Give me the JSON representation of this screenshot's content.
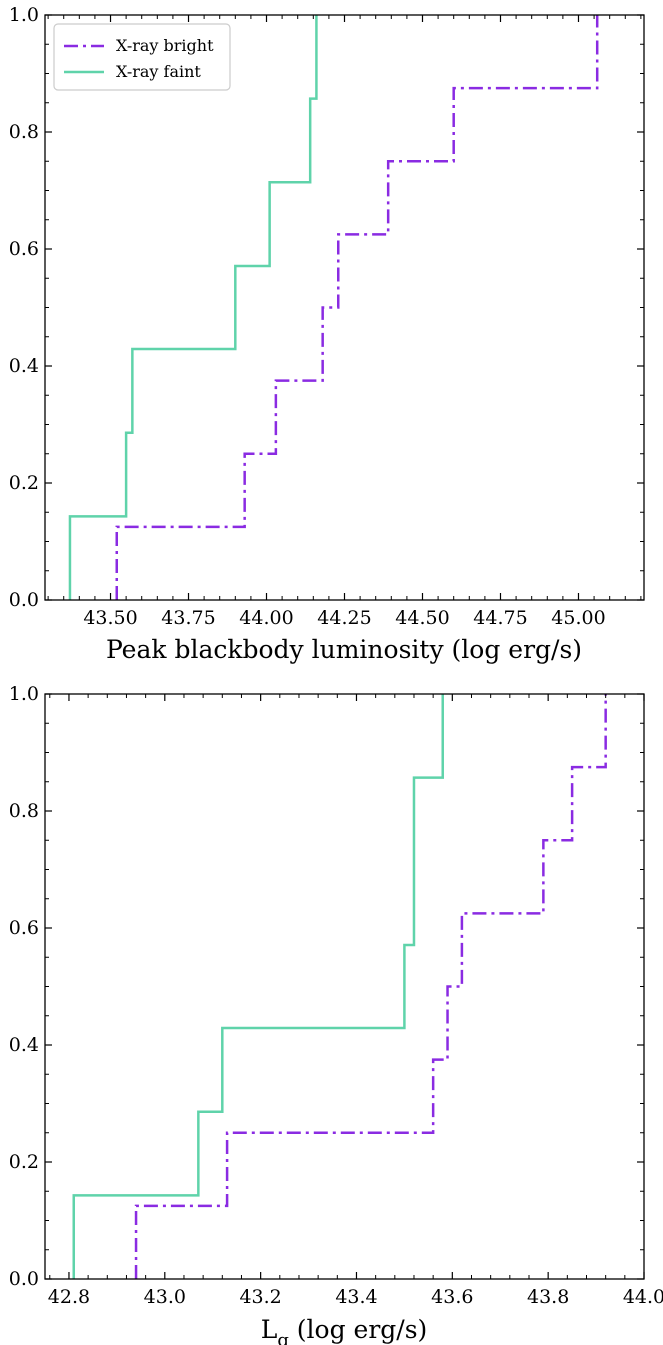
{
  "chart_data": [
    {
      "type": "line",
      "subtype": "step",
      "xlabel": "Peak blackbody luminosity (log erg/s)",
      "ylabel": "",
      "xlim": [
        43.29,
        45.21
      ],
      "ylim": [
        0,
        1.0
      ],
      "x_ticks": [
        43.5,
        43.75,
        44.0,
        44.25,
        44.5,
        44.75,
        45.0
      ],
      "x_tick_labels": [
        "43.50",
        "43.75",
        "44.00",
        "44.25",
        "44.50",
        "44.75",
        "45.00"
      ],
      "y_ticks": [
        0.0,
        0.2,
        0.4,
        0.6,
        0.8,
        1.0
      ],
      "y_tick_labels": [
        "0.0",
        "0.2",
        "0.4",
        "0.6",
        "0.8",
        "1.0"
      ],
      "grid": false,
      "legend": {
        "placement": "top-left",
        "entries": [
          {
            "label": "X-ray bright",
            "color": "#8a2be2",
            "dash": "dashdot"
          },
          {
            "label": "X-ray faint",
            "color": "#5fd3aa",
            "dash": "solid"
          }
        ]
      },
      "series": [
        {
          "name": "X-ray bright",
          "color": "#8a2be2",
          "dash": "dashdot",
          "x": [
            43.52,
            43.93,
            44.03,
            44.18,
            44.23,
            44.39,
            44.6,
            45.06
          ],
          "y": [
            0.125,
            0.25,
            0.375,
            0.5,
            0.625,
            0.75,
            0.875,
            1.0
          ]
        },
        {
          "name": "X-ray faint",
          "color": "#5fd3aa",
          "dash": "solid",
          "x": [
            43.37,
            43.55,
            43.57,
            43.9,
            44.01,
            44.14,
            44.16
          ],
          "y": [
            0.143,
            0.286,
            0.429,
            0.571,
            0.714,
            0.857,
            1.0
          ]
        }
      ]
    },
    {
      "type": "line",
      "subtype": "step",
      "xlabel": "L_g (log erg/s)",
      "xlabel_main": "L",
      "xlabel_sub": "g",
      "xlabel_rest": " (log erg/s)",
      "ylabel": "",
      "xlim": [
        42.75,
        44.0
      ],
      "ylim": [
        0,
        1.0
      ],
      "x_ticks": [
        42.8,
        43.0,
        43.2,
        43.4,
        43.6,
        43.8,
        44.0
      ],
      "x_tick_labels": [
        "42.8",
        "43.0",
        "43.2",
        "43.4",
        "43.6",
        "43.8",
        "44.0"
      ],
      "y_ticks": [
        0.0,
        0.2,
        0.4,
        0.6,
        0.8,
        1.0
      ],
      "y_tick_labels": [
        "0.0",
        "0.2",
        "0.4",
        "0.6",
        "0.8",
        "1.0"
      ],
      "grid": false,
      "series": [
        {
          "name": "X-ray bright",
          "color": "#8a2be2",
          "dash": "dashdot",
          "x": [
            42.94,
            43.13,
            43.56,
            43.59,
            43.62,
            43.79,
            43.85,
            43.92
          ],
          "y": [
            0.125,
            0.25,
            0.375,
            0.5,
            0.625,
            0.75,
            0.875,
            1.0
          ]
        },
        {
          "name": "X-ray faint",
          "color": "#5fd3aa",
          "dash": "solid",
          "x": [
            42.81,
            43.07,
            43.12,
            43.5,
            43.52,
            43.58
          ],
          "y": [
            0.143,
            0.286,
            0.429,
            0.571,
            0.857,
            1.0
          ]
        }
      ]
    }
  ]
}
